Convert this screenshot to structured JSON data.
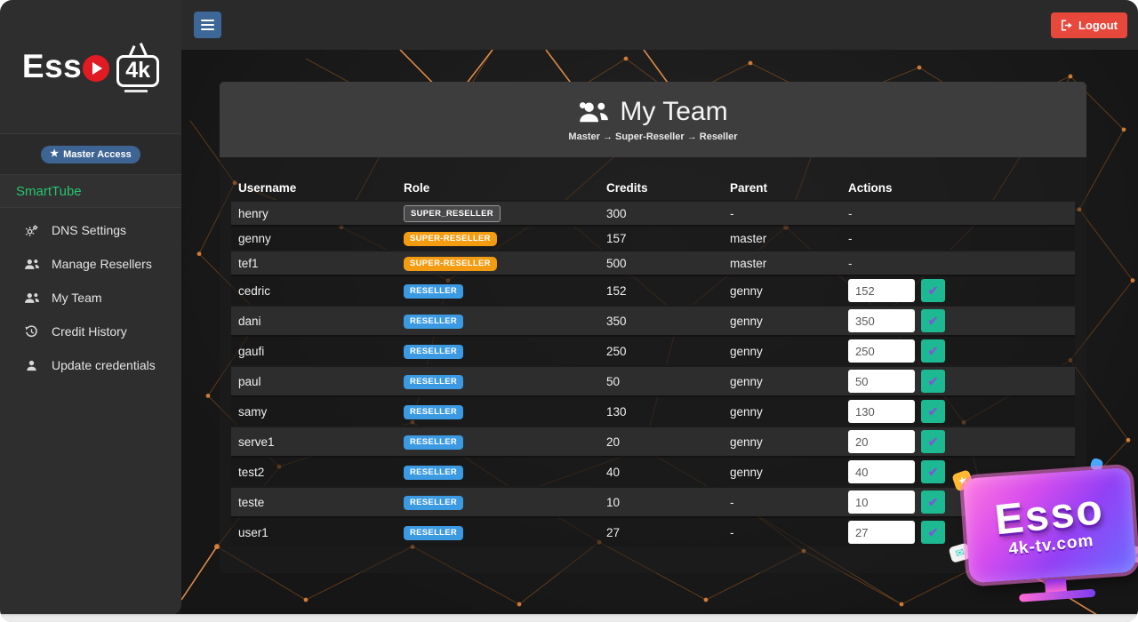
{
  "brand": {
    "logo_text": "Ess",
    "logo_4k": "4k",
    "name": "Esso 4k"
  },
  "topbar": {
    "logout_label": "Logout"
  },
  "sidebar": {
    "access_badge": "Master Access",
    "home_item": "SmartTube",
    "items": [
      {
        "label": "DNS Settings",
        "icon": "cogs-icon"
      },
      {
        "label": "Manage Resellers",
        "icon": "users-icon"
      },
      {
        "label": "My Team",
        "icon": "users-icon"
      },
      {
        "label": "Credit History",
        "icon": "history-icon"
      },
      {
        "label": "Update credentials",
        "icon": "user-icon"
      }
    ]
  },
  "panel": {
    "title": "My Team",
    "subtitle": "Master → Super-Reseller → Reseller"
  },
  "table": {
    "columns": [
      "Username",
      "Role",
      "Credits",
      "Parent",
      "Actions"
    ],
    "empty_cell": "-",
    "update_button_glyph": "✔",
    "rows": [
      {
        "username": "henry",
        "role": "SUPER_RESELLER",
        "role_style": "dark",
        "credits": "300",
        "parent": "-",
        "action_value": null
      },
      {
        "username": "genny",
        "role": "SUPER-RESELLER",
        "role_style": "orange",
        "credits": "157",
        "parent": "master",
        "action_value": null
      },
      {
        "username": "tef1",
        "role": "SUPER-RESELLER",
        "role_style": "orange",
        "credits": "500",
        "parent": "master",
        "action_value": null
      },
      {
        "username": "cedric",
        "role": "RESELLER",
        "role_style": "blue",
        "credits": "152",
        "parent": "genny",
        "action_value": "152"
      },
      {
        "username": "dani",
        "role": "RESELLER",
        "role_style": "blue",
        "credits": "350",
        "parent": "genny",
        "action_value": "350"
      },
      {
        "username": "gaufi",
        "role": "RESELLER",
        "role_style": "blue",
        "credits": "250",
        "parent": "genny",
        "action_value": "250"
      },
      {
        "username": "paul",
        "role": "RESELLER",
        "role_style": "blue",
        "credits": "50",
        "parent": "genny",
        "action_value": "50"
      },
      {
        "username": "samy",
        "role": "RESELLER",
        "role_style": "blue",
        "credits": "130",
        "parent": "genny",
        "action_value": "130"
      },
      {
        "username": "serve1",
        "role": "RESELLER",
        "role_style": "blue",
        "credits": "20",
        "parent": "genny",
        "action_value": "20"
      },
      {
        "username": "test2",
        "role": "RESELLER",
        "role_style": "blue",
        "credits": "40",
        "parent": "genny",
        "action_value": "40"
      },
      {
        "username": "teste",
        "role": "RESELLER",
        "role_style": "blue",
        "credits": "10",
        "parent": "-",
        "action_value": "10"
      },
      {
        "username": "user1",
        "role": "RESELLER",
        "role_style": "blue",
        "credits": "27",
        "parent": "-",
        "action_value": "27"
      }
    ]
  },
  "watermark": {
    "line1": "Esso",
    "line2": "4k-tv.com"
  },
  "colors": {
    "accent_orange": "#f39c12",
    "accent_blue": "#3498db",
    "accent_teal": "#1db992",
    "danger_red": "#e8483c",
    "steel_blue": "#3d6796",
    "brand_green": "#27c46f"
  }
}
